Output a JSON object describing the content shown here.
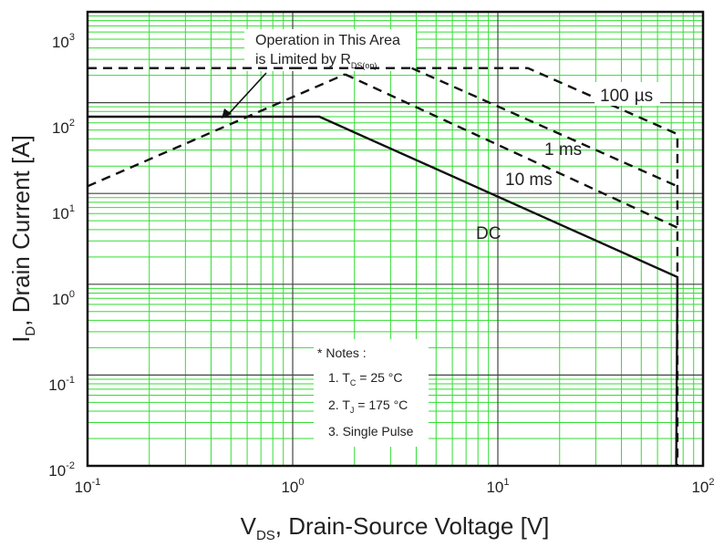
{
  "chart_data": {
    "type": "line",
    "x_scale": "log",
    "y_scale": "log",
    "xlim": [
      0.1,
      100
    ],
    "ylim": [
      0.01,
      1000
    ],
    "x_ticks": [
      {
        "base": "10",
        "exp": "-1"
      },
      {
        "base": "10",
        "exp": "0"
      },
      {
        "base": "10",
        "exp": "1"
      },
      {
        "base": "10",
        "exp": "2"
      }
    ],
    "y_ticks": [
      {
        "base": "10",
        "exp": "-2"
      },
      {
        "base": "10",
        "exp": "-1"
      },
      {
        "base": "10",
        "exp": "0"
      },
      {
        "base": "10",
        "exp": "1"
      },
      {
        "base": "10",
        "exp": "2"
      },
      {
        "base": "10",
        "exp": "3"
      }
    ],
    "xlabel": {
      "main": "V",
      "sub": "DS",
      "rest": ", Drain-Source Voltage [V]"
    },
    "ylabel": {
      "main": "I",
      "sub": "D",
      "rest": ", Drain Current [A]"
    },
    "grid": true,
    "grid_color": "#33dd33",
    "line_color": "#111111",
    "series": [
      {
        "name": "100 µs",
        "style": "dashed",
        "points": [
          [
            1.0,
            240
          ],
          [
            14,
            240
          ],
          [
            75,
            45
          ],
          [
            75,
            0.01
          ]
        ]
      },
      {
        "name": "1 ms",
        "style": "dashed",
        "points": [
          [
            3.8,
            240
          ],
          [
            75,
            12
          ]
        ]
      },
      {
        "name": "10 ms",
        "style": "dashed",
        "points": [
          [
            1.8,
            205
          ],
          [
            75,
            4.2
          ]
        ]
      },
      {
        "name": "DC",
        "style": "solid",
        "points": [
          [
            0.1,
            70
          ],
          [
            1.35,
            70
          ],
          [
            75,
            1.2
          ],
          [
            74,
            0.01
          ]
        ]
      },
      {
        "name": "",
        "style": "dashed",
        "points": [
          [
            0.1,
            12
          ],
          [
            1.8,
            205
          ]
        ]
      },
      {
        "name": "",
        "style": "dashed",
        "points": [
          [
            0.1,
            240
          ],
          [
            1.0,
            240
          ]
        ]
      }
    ],
    "annotations": {
      "region_line1": "Operation in This Area",
      "region_line2_prefix": "is Limited by R",
      "region_line2_sub": "DS(on)",
      "label_100us_a": "100",
      "label_100us_b": "µs",
      "label_1ms": "1 ms",
      "label_10ms": "10 ms",
      "label_dc": "DC"
    },
    "notes": {
      "title": "* Notes :",
      "n1_prefix": "1. T",
      "n1_sub": "C",
      "n1_rest": " = 25 °C",
      "n2_prefix": "2. T",
      "n2_sub": "J",
      "n2_rest": " = 175 °C",
      "n3": "3. Single Pulse"
    }
  }
}
